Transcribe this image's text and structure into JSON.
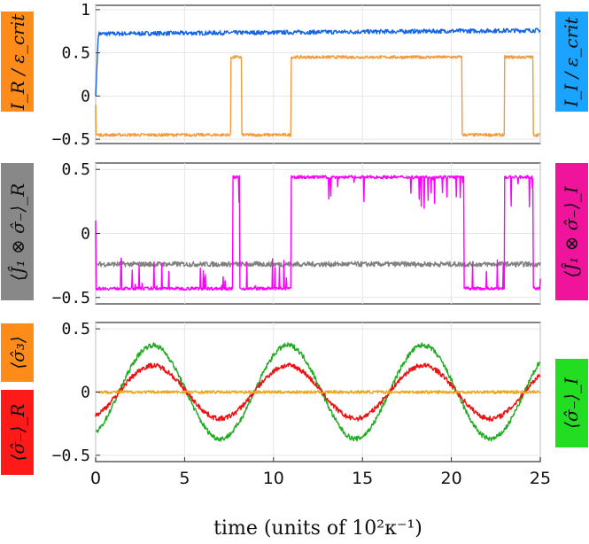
{
  "chart_data": [
    {
      "type": "line",
      "panel": "top",
      "x_range": [
        0,
        25
      ],
      "ylim": [
        -0.55,
        1.05
      ],
      "yticks": [
        {
          "v": 1,
          "label": "1"
        },
        {
          "v": 0.5,
          "label": "0.5"
        },
        {
          "v": 0,
          "label": "0"
        },
        {
          "v": -0.5,
          "label": "−0.5"
        }
      ],
      "left_label": {
        "text": "I_R / ε_crit",
        "color": "#FF8C1A"
      },
      "right_label": {
        "text": "I_I / ε_crit",
        "color": "#1AA3FF"
      },
      "series": [
        {
          "name": "I_I",
          "color": "#1565E8",
          "kind": "plateau",
          "points": [
            [
              0,
              0.0
            ],
            [
              0.15,
              0.72
            ],
            [
              25,
              0.76
            ]
          ],
          "noise": 0.025
        },
        {
          "name": "I_R",
          "color": "#F59A3A",
          "kind": "switching",
          "start": -0.1,
          "levels": [
            [
              0,
              -0.45
            ],
            [
              7.6,
              0.45
            ],
            [
              8.2,
              -0.45
            ],
            [
              11.0,
              0.45
            ],
            [
              20.6,
              -0.45
            ],
            [
              23.0,
              0.45
            ],
            [
              24.6,
              -0.45
            ]
          ],
          "noise": 0.018
        }
      ]
    },
    {
      "type": "line",
      "panel": "middle",
      "x_range": [
        0,
        25
      ],
      "ylim": [
        -0.55,
        0.55
      ],
      "yticks": [
        {
          "v": 0.5,
          "label": "0.5"
        },
        {
          "v": 0,
          "label": "0"
        },
        {
          "v": -0.5,
          "label": "−0.5"
        }
      ],
      "left_label": {
        "text": "⟨Ĵ₁ ⊗ σ̂₋⟩_R",
        "color": "#888888"
      },
      "right_label": {
        "text": "⟨Ĵ₁ ⊗ σ̂₋⟩_I",
        "color": "#F0149C"
      },
      "series": [
        {
          "name": "<J1 x sigma_minus>_R",
          "color": "#808080",
          "kind": "plateau",
          "points": [
            [
              0,
              -0.24
            ],
            [
              25,
              -0.24
            ]
          ],
          "noise": 0.02
        },
        {
          "name": "<J1 x sigma_minus>_I",
          "color": "#FF00FF",
          "kind": "switching",
          "start": 0.1,
          "levels": [
            [
              0,
              -0.43
            ],
            [
              7.7,
              0.44
            ],
            [
              8.1,
              -0.43
            ],
            [
              11.0,
              0.44
            ],
            [
              20.7,
              -0.43
            ],
            [
              23.0,
              0.44
            ],
            [
              24.6,
              -0.43
            ]
          ],
          "noise": 0.012,
          "spikes": 0.4
        }
      ]
    },
    {
      "type": "line",
      "panel": "bottom",
      "x_range": [
        0,
        25
      ],
      "ylim": [
        -0.55,
        0.55
      ],
      "yticks": [
        {
          "v": 0.5,
          "label": "0.5"
        },
        {
          "v": 0,
          "label": "0"
        },
        {
          "v": -0.5,
          "label": "−0.5"
        }
      ],
      "xticks": [
        {
          "v": 0,
          "label": "0"
        },
        {
          "v": 5,
          "label": "5"
        },
        {
          "v": 10,
          "label": "10"
        },
        {
          "v": 15,
          "label": "15"
        },
        {
          "v": 20,
          "label": "20"
        },
        {
          "v": 25,
          "label": "25"
        }
      ],
      "xlabel": "time (units of 10²κ⁻¹)",
      "left_labels": [
        {
          "text": "⟨σ̂₃⟩",
          "color": "#FF8C1A"
        },
        {
          "text": "⟨σ̂₋⟩_R",
          "color": "#FF1A1A"
        }
      ],
      "right_label": {
        "text": "⟨σ̂₋⟩_I",
        "color": "#22DD22"
      },
      "series": [
        {
          "name": "<sigma_minus>_I",
          "color": "#22AA22",
          "kind": "oscillation",
          "amplitude": 0.37,
          "period": 7.6,
          "phase": 0.5,
          "noise": 0.02
        },
        {
          "name": "<sigma_minus>_R",
          "color": "#EE1111",
          "kind": "oscillation",
          "amplitude": 0.21,
          "period": 7.6,
          "phase": 0.5,
          "noise": 0.02
        },
        {
          "name": "<sigma_3>",
          "color": "#E8A820",
          "kind": "plateau",
          "points": [
            [
              0,
              0.0
            ],
            [
              25,
              0.0
            ]
          ],
          "noise": 0.012
        }
      ]
    }
  ]
}
